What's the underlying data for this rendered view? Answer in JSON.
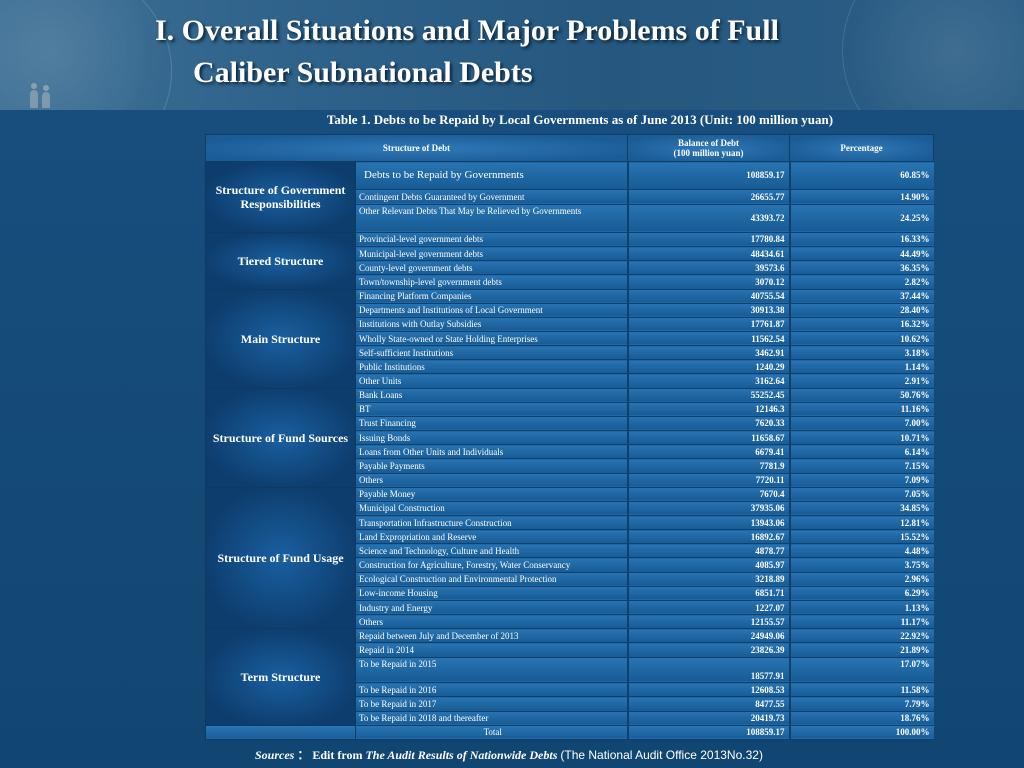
{
  "slide": {
    "title_line1": "I. Overall Situations and Major Problems of Full",
    "title_line2": "Caliber Subnational Debts"
  },
  "table": {
    "caption": "Table 1. Debts to be Repaid by Local Governments as of June 2013 (Unit: 100 million yuan)",
    "headers": {
      "structure": "Structure of Debt",
      "balance_l1": "Balance of Debt",
      "balance_l2": "(100 million yuan)",
      "percentage": "Percentage"
    },
    "groups": [
      {
        "name": "Structure of Government Responsibilities",
        "rows": [
          {
            "item": "Debts to be Repaid by Governments",
            "balance": "108859.17",
            "pct": "60.85%"
          },
          {
            "item": "Contingent Debts Guaranteed by Government",
            "balance": "26655.77",
            "pct": "14.90%"
          },
          {
            "item": "Other Relevant Debts That May be Relieved by Governments",
            "balance": "43393.72",
            "pct": "24.25%"
          }
        ]
      },
      {
        "name": "Tiered Structure",
        "rows": [
          {
            "item": "Provincial-level government debts",
            "balance": "17780.84",
            "pct": "16.33%"
          },
          {
            "item": "Municipal-level government debts",
            "balance": "48434.61",
            "pct": "44.49%"
          },
          {
            "item": "County-level government debts",
            "balance": "39573.6",
            "pct": "36.35%"
          },
          {
            "item": "Town/township-level government debts",
            "balance": "3070.12",
            "pct": "2.82%"
          }
        ]
      },
      {
        "name": "Main Structure",
        "rows": [
          {
            "item": "Financing Platform Companies",
            "balance": "40755.54",
            "pct": "37.44%"
          },
          {
            "item": "Departments and Institutions of Local Government",
            "balance": "30913.38",
            "pct": "28.40%"
          },
          {
            "item": "Institutions with Outlay Subsidies",
            "balance": "17761.87",
            "pct": "16.32%"
          },
          {
            "item": "Wholly State-owned or State Holding Enterprises",
            "balance": "11562.54",
            "pct": "10.62%"
          },
          {
            "item": "Self-sufficient Institutions",
            "balance": "3462.91",
            "pct": "3.18%"
          },
          {
            "item": "Public Institutions",
            "balance": "1240.29",
            "pct": "1.14%"
          },
          {
            "item": "Other Units",
            "balance": "3162.64",
            "pct": "2.91%"
          }
        ]
      },
      {
        "name": "Structure of Fund Sources",
        "rows": [
          {
            "item": "Bank Loans",
            "balance": "55252.45",
            "pct": "50.76%"
          },
          {
            "item": "BT",
            "balance": "12146.3",
            "pct": "11.16%"
          },
          {
            "item": "Trust Financing",
            "balance": "7620.33",
            "pct": "7.00%"
          },
          {
            "item": "Issuing Bonds",
            "balance": "11658.67",
            "pct": "10.71%"
          },
          {
            "item": "Loans from Other Units and Individuals",
            "balance": "6679.41",
            "pct": "6.14%"
          },
          {
            "item": "Payable Payments",
            "balance": "7781.9",
            "pct": "7.15%"
          },
          {
            "item": "Others",
            "balance": "7720.11",
            "pct": "7.09%"
          }
        ]
      },
      {
        "name": "Structure of Fund Usage",
        "rows": [
          {
            "item": "Payable Money",
            "balance": "7670.4",
            "pct": "7.05%"
          },
          {
            "item": "Municipal Construction",
            "balance": "37935.06",
            "pct": "34.85%"
          },
          {
            "item": "Transportation Infrastructure Construction",
            "balance": "13943.06",
            "pct": "12.81%"
          },
          {
            "item": "Land Expropriation and Reserve",
            "balance": "16892.67",
            "pct": "15.52%"
          },
          {
            "item": "Science and Technology, Culture and Health",
            "balance": "4878.77",
            "pct": "4.48%"
          },
          {
            "item": "Construction for Agriculture, Forestry, Water Conservancy",
            "balance": "4085.97",
            "pct": "3.75%"
          },
          {
            "item": "Ecological Construction and Environmental Protection",
            "balance": "3218.89",
            "pct": "2.96%"
          },
          {
            "item": "Low-income Housing",
            "balance": "6851.71",
            "pct": "6.29%"
          },
          {
            "item": "Industry and Energy",
            "balance": "1227.07",
            "pct": "1.13%"
          },
          {
            "item": "Others",
            "balance": "12155.57",
            "pct": "11.17%"
          }
        ]
      },
      {
        "name": "Term Structure",
        "rows": [
          {
            "item": "Repaid between July and December of 2013",
            "balance": "24949.06",
            "pct": "22.92%"
          },
          {
            "item": "Repaid in 2014",
            "balance": "23826.39",
            "pct": "21.89%"
          },
          {
            "item": "To be Repaid in 2015",
            "balance": "18577.91",
            "pct": "17.07%"
          },
          {
            "item": "To be Repaid in 2016",
            "balance": "12608.53",
            "pct": "11.58%"
          },
          {
            "item": "To be Repaid in 2017",
            "balance": "8477.55",
            "pct": "7.79%"
          },
          {
            "item": "To be Repaid in 2018 and thereafter",
            "balance": "20419.73",
            "pct": "18.76%"
          }
        ]
      }
    ],
    "total": {
      "label": "Total",
      "balance": "108859.17",
      "pct": "100.00%"
    }
  },
  "sources": {
    "label": "Sources",
    "sep": "：",
    "prefix": "Edit from",
    "publication": "The Audit Results of  Nationwide  Debts",
    "note": "(The National Audit Office 2013No.32)"
  }
}
